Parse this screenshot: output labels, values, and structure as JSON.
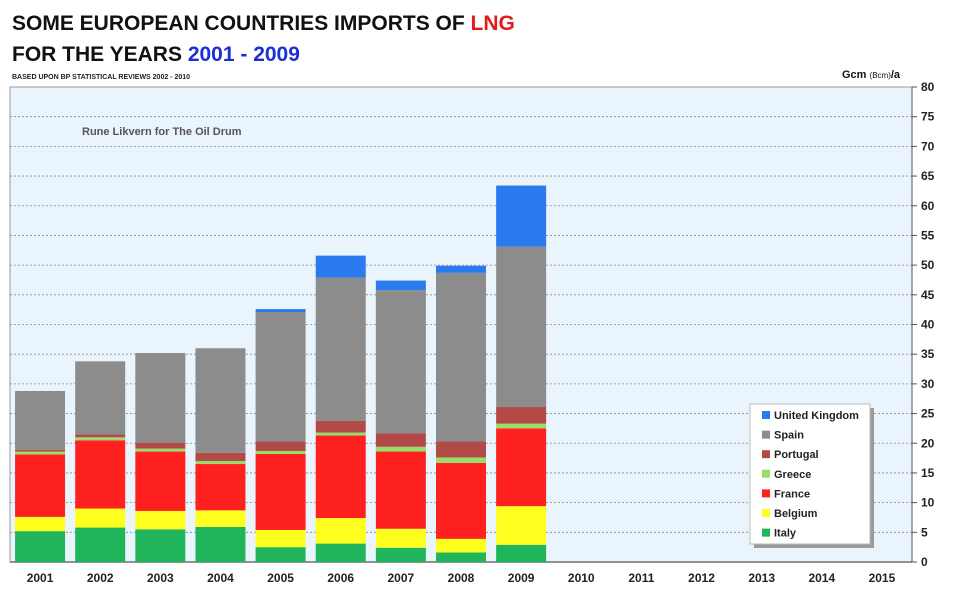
{
  "header": {
    "title_line1_prefix": "SOME EUROPEAN COUNTRIES IMPORTS OF ",
    "title_line1_highlight": "LNG",
    "title_line2_prefix": "FOR THE YEARS ",
    "title_line2_highlight": "2001 - 2009",
    "subtitle": "BASED UPON BP STATISTICAL REVIEWS 2002 - 2010"
  },
  "unit_label": {
    "main": "Gcm",
    "paren": "(Bcm)",
    "suffix": "/a"
  },
  "chart_data": {
    "type": "bar",
    "stacked": true,
    "annotation": "Rune Likvern for The Oil Drum",
    "categories": [
      "2001",
      "2002",
      "2003",
      "2004",
      "2005",
      "2006",
      "2007",
      "2008",
      "2009",
      "2010",
      "2011",
      "2012",
      "2013",
      "2014",
      "2015"
    ],
    "ylim": [
      0,
      80
    ],
    "yticks": [
      0,
      5,
      10,
      15,
      20,
      25,
      30,
      35,
      40,
      45,
      50,
      55,
      60,
      65,
      70,
      75,
      80
    ],
    "y_axis_side": "right",
    "grid": true,
    "legend_position": "bottom-right",
    "series": [
      {
        "name": "Italy",
        "color": "#21b55b",
        "values": [
          5.2,
          5.8,
          5.5,
          5.9,
          2.5,
          3.1,
          2.4,
          1.6,
          2.9,
          null,
          null,
          null,
          null,
          null,
          null
        ]
      },
      {
        "name": "Belgium",
        "color": "#ffff1f",
        "values": [
          2.4,
          3.2,
          3.1,
          2.8,
          2.9,
          4.3,
          3.2,
          2.3,
          6.5,
          null,
          null,
          null,
          null,
          null,
          null
        ]
      },
      {
        "name": "France",
        "color": "#ff2020",
        "values": [
          10.5,
          11.5,
          10.0,
          7.8,
          12.8,
          13.9,
          13.0,
          12.8,
          13.1,
          null,
          null,
          null,
          null,
          null,
          null
        ]
      },
      {
        "name": "Greece",
        "color": "#99dd6a",
        "values": [
          0.5,
          0.5,
          0.5,
          0.5,
          0.5,
          0.5,
          0.8,
          0.9,
          0.8,
          null,
          null,
          null,
          null,
          null,
          null
        ]
      },
      {
        "name": "Portugal",
        "color": "#b24a48",
        "values": [
          0.3,
          0.5,
          1.0,
          1.4,
          1.6,
          2.0,
          2.3,
          2.7,
          2.8,
          null,
          null,
          null,
          null,
          null,
          null
        ]
      },
      {
        "name": "Spain",
        "color": "#8c8c8c",
        "values": [
          9.9,
          12.3,
          15.1,
          17.6,
          21.8,
          24.1,
          24.1,
          28.4,
          27.0,
          null,
          null,
          null,
          null,
          null,
          null
        ]
      },
      {
        "name": "United Kingdom",
        "color": "#2b7bf0",
        "values": [
          0,
          0,
          0,
          0,
          0.5,
          3.7,
          1.6,
          1.2,
          10.3,
          null,
          null,
          null,
          null,
          null,
          null
        ]
      }
    ]
  }
}
